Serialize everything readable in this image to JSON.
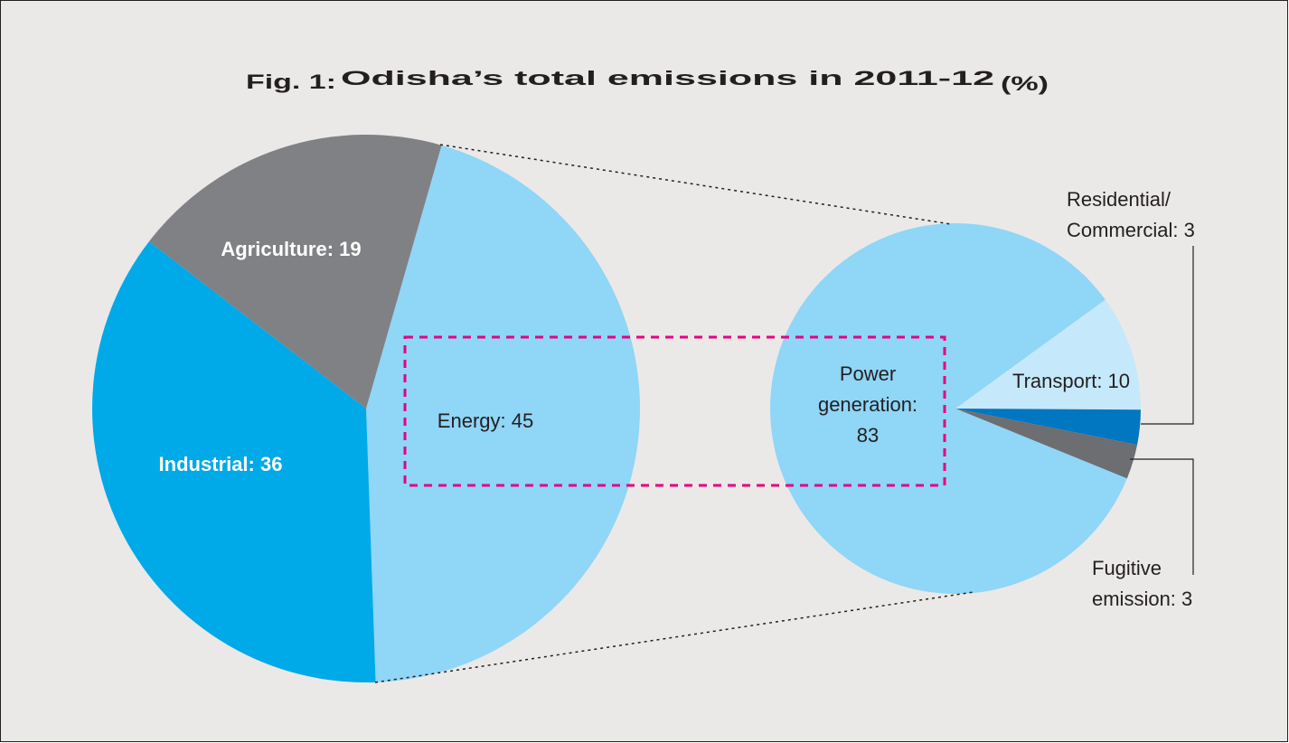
{
  "title": {
    "prefix": "Fig. 1:",
    "main": "Odisha’s total emissions in 2011-12",
    "unit": "(%)"
  },
  "chart_data": [
    {
      "type": "pie",
      "values": [
        45,
        36,
        19
      ],
      "value_labels": [
        [
          "Energy: 45"
        ],
        [
          "Industrial: 36"
        ],
        [
          "Agriculture: 19"
        ]
      ],
      "colors": [
        "#8fd6f7",
        "#00a9e8",
        "#808184"
      ]
    },
    {
      "type": "pie",
      "values": [
        10,
        3,
        3,
        83
      ],
      "value_labels": [
        [
          "Transport: 10"
        ],
        [
          "Residential/",
          "Commercial: 3"
        ],
        [
          "Fugitive",
          "emission: 3"
        ],
        [
          "Power",
          "generation:",
          "83"
        ]
      ],
      "colors": [
        "#c5e9fb",
        "#0077c0",
        "#6d6e71",
        "#8fd6f7"
      ]
    }
  ]
}
